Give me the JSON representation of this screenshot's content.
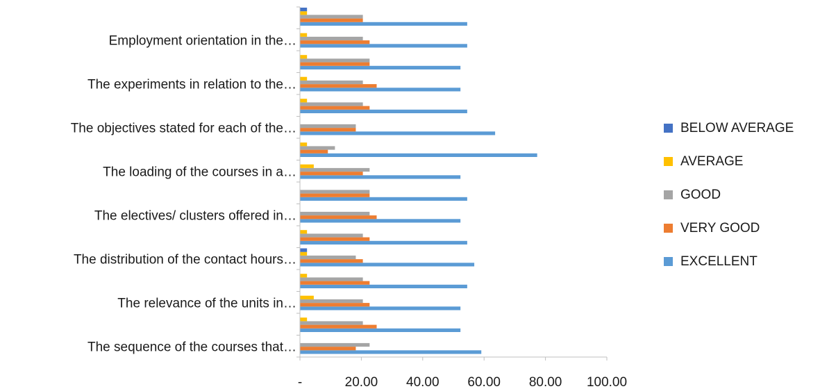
{
  "chart_data": {
    "type": "bar",
    "orientation": "horizontal",
    "title": "",
    "xlabel": "",
    "ylabel": "",
    "xlim": [
      0,
      100
    ],
    "x_ticks": [
      0,
      20,
      40,
      60,
      80,
      100
    ],
    "x_tick_labels": [
      "-",
      "20.00",
      "40.00",
      "60.00",
      "80.00",
      "100.00"
    ],
    "grid": false,
    "legend_position": "right",
    "categories": [
      "The sequence of the courses that…",
      "",
      "The relevance of the units in…",
      "",
      "The distribution of the contact hours…",
      "",
      "The electives/ clusters offered in…",
      "",
      "The loading of the courses in a…",
      "",
      "The objectives stated for each of the…",
      "",
      "The experiments in relation to the…",
      "",
      "Employment orientation in the…",
      ""
    ],
    "series": [
      {
        "name": "EXCELLENT",
        "color": "#5B9BD5",
        "values": [
          59.1,
          52.3,
          52.3,
          54.5,
          56.8,
          54.5,
          52.3,
          54.5,
          52.3,
          77.3,
          63.6,
          54.5,
          52.3,
          52.3,
          54.5,
          54.5
        ]
      },
      {
        "name": "VERY GOOD",
        "color": "#ED7D31",
        "values": [
          18.2,
          25.0,
          22.7,
          22.7,
          20.5,
          22.7,
          25.0,
          22.7,
          20.5,
          9.1,
          18.2,
          22.7,
          25.0,
          22.7,
          22.7,
          20.5
        ]
      },
      {
        "name": "GOOD",
        "color": "#A5A5A5",
        "values": [
          22.7,
          20.5,
          20.5,
          20.5,
          18.2,
          20.5,
          22.7,
          22.7,
          22.7,
          11.4,
          18.2,
          20.5,
          20.5,
          22.7,
          20.5,
          20.5
        ]
      },
      {
        "name": "AVERAGE",
        "color": "#FFC000",
        "values": [
          0,
          2.3,
          4.5,
          2.3,
          2.3,
          2.3,
          0,
          0,
          4.5,
          2.3,
          0,
          2.3,
          2.3,
          2.3,
          2.3,
          2.3
        ]
      },
      {
        "name": "BELOW AVERAGE",
        "color": "#4472C4",
        "values": [
          0,
          0,
          0,
          0,
          2.3,
          0,
          0,
          0,
          0,
          0,
          0,
          0,
          0,
          0,
          0,
          2.3
        ]
      }
    ],
    "legend_order": [
      "BELOW AVERAGE",
      "AVERAGE",
      "GOOD",
      "VERY GOOD",
      "EXCELLENT"
    ]
  }
}
